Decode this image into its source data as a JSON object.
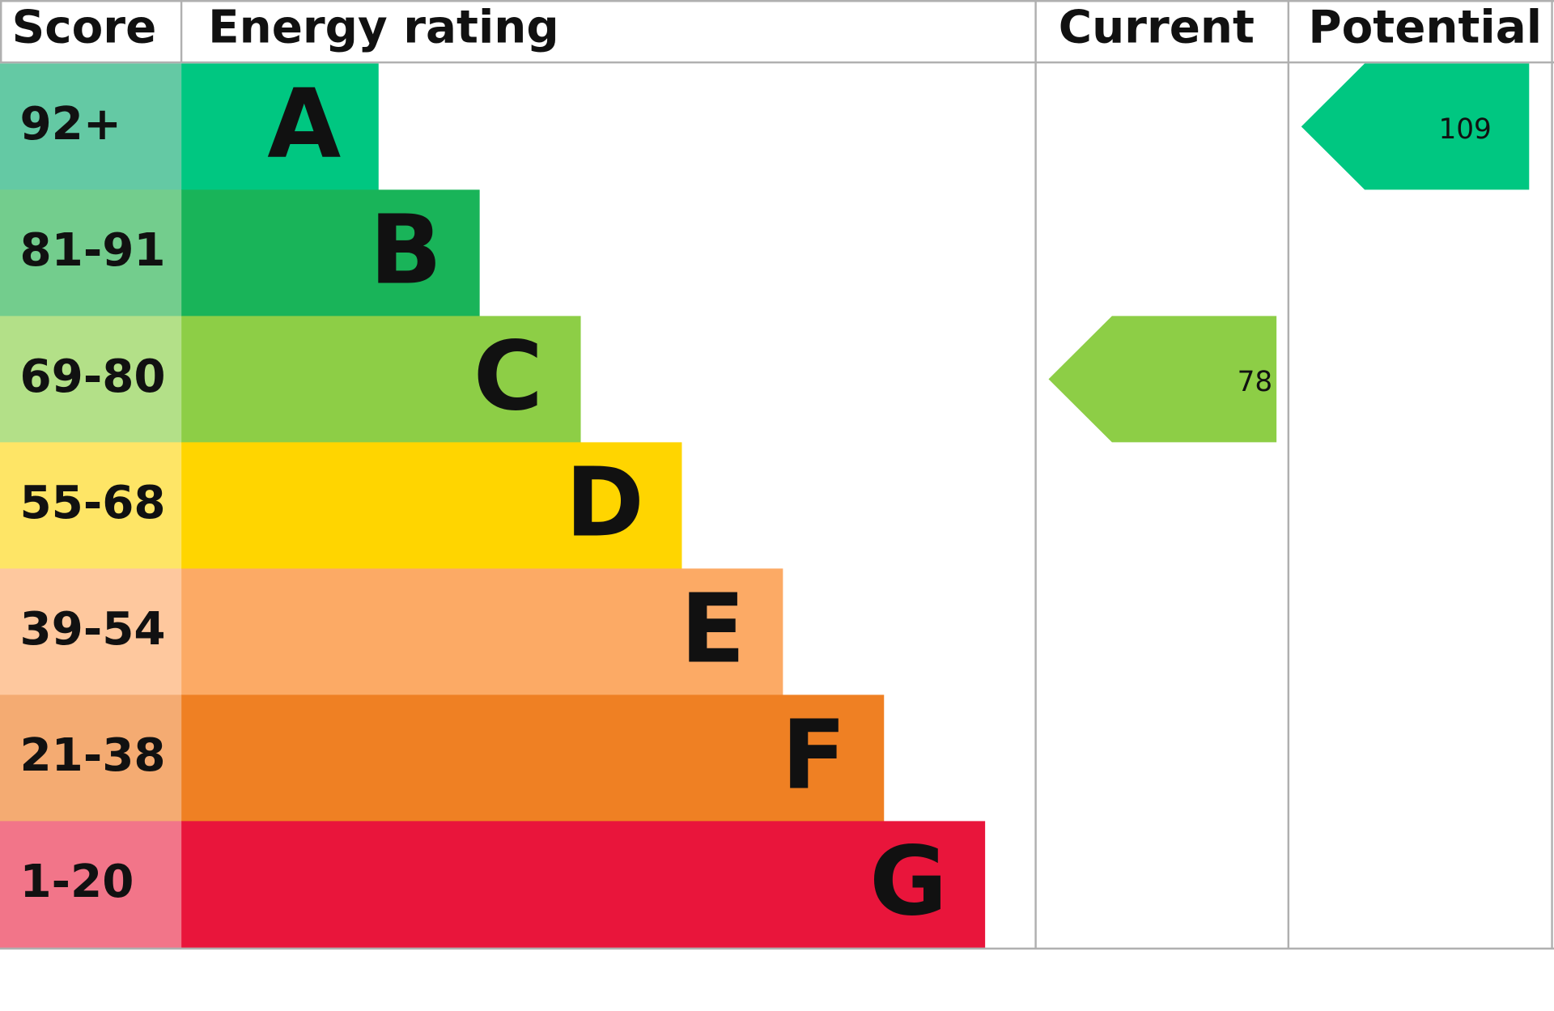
{
  "header": {
    "score": "Score",
    "rating": "Energy rating",
    "current": "Current",
    "potential": "Potential"
  },
  "bands": [
    {
      "score": "92+",
      "letter": "A",
      "color": "#00c781",
      "score_color": "#64c9a4"
    },
    {
      "score": "81-91",
      "letter": "B",
      "color": "#19b459",
      "score_color": "#73cd8d"
    },
    {
      "score": "69-80",
      "letter": "C",
      "color": "#8dce46",
      "score_color": "#b3e088"
    },
    {
      "score": "55-68",
      "letter": "D",
      "color": "#ffd500",
      "score_color": "#fee566"
    },
    {
      "score": "39-54",
      "letter": "E",
      "color": "#fcaa65",
      "score_color": "#fec89e"
    },
    {
      "score": "21-38",
      "letter": "F",
      "color": "#ef8023",
      "score_color": "#f4ab72"
    },
    {
      "score": "1-20",
      "letter": "G",
      "color": "#e9153b",
      "score_color": "#f27589"
    }
  ],
  "current": 78,
  "potential": 109
}
